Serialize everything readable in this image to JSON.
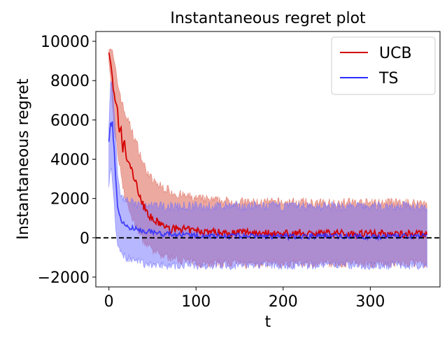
{
  "chart_data": {
    "type": "line",
    "title": "Instantaneous regret plot",
    "xlabel": "t",
    "ylabel": "Instantaneous regret",
    "xlim": [
      -15,
      380
    ],
    "ylim": [
      -2500,
      10500
    ],
    "x_ticks": [
      0,
      100,
      200,
      300
    ],
    "x_tick_labels": [
      "0",
      "100",
      "200",
      "300"
    ],
    "y_ticks": [
      -2000,
      0,
      2000,
      4000,
      6000,
      8000,
      10000
    ],
    "y_tick_labels": [
      "−2000",
      "0",
      "2000",
      "4000",
      "6000",
      "8000",
      "10000"
    ],
    "reference_line": {
      "y": 0,
      "style": "dashed",
      "color": "#000000"
    },
    "legend_position": "top-right",
    "grid": false,
    "series": [
      {
        "name": "UCB",
        "color": "#d40000",
        "fill_color": "#e07060",
        "x": [
          0,
          2,
          4,
          6,
          8,
          10,
          12,
          14,
          16,
          18,
          20,
          25,
          30,
          35,
          40,
          50,
          60,
          70,
          80,
          90,
          100,
          120,
          140,
          160,
          180,
          200,
          220,
          240,
          260,
          280,
          300,
          320,
          340,
          365
        ],
        "mean": [
          9500,
          8800,
          8200,
          7200,
          6800,
          6400,
          5200,
          5600,
          4400,
          5000,
          4000,
          3600,
          2900,
          2200,
          1600,
          900,
          700,
          400,
          500,
          400,
          350,
          300,
          250,
          300,
          250,
          200,
          250,
          200,
          250,
          200,
          250,
          200,
          200,
          200
        ],
        "upper": [
          9800,
          9700,
          9400,
          8900,
          8400,
          7900,
          7500,
          7100,
          6700,
          6400,
          6200,
          5600,
          5000,
          4400,
          3700,
          2900,
          2600,
          2400,
          2200,
          2100,
          2000,
          1900,
          1850,
          1800,
          1800,
          1800,
          1800,
          1750,
          1800,
          1800,
          1750,
          1800,
          1750,
          1800
        ],
        "lower": [
          8800,
          8000,
          6800,
          5600,
          5000,
          4400,
          3800,
          3300,
          2700,
          2200,
          1800,
          1200,
          700,
          200,
          -200,
          -700,
          -900,
          -1000,
          -1100,
          -1200,
          -1300,
          -1300,
          -1300,
          -1350,
          -1300,
          -1350,
          -1300,
          -1300,
          -1300,
          -1300,
          -1300,
          -1300,
          -1300,
          -1300
        ]
      },
      {
        "name": "TS",
        "color": "#2b2bff",
        "fill_color": "#7070ff",
        "x": [
          0,
          2,
          4,
          6,
          8,
          10,
          12,
          15,
          20,
          25,
          30,
          35,
          40,
          50,
          60,
          80,
          100,
          150,
          200,
          250,
          300,
          365
        ],
        "mean": [
          4800,
          5800,
          5800,
          4500,
          2800,
          1700,
          1100,
          800,
          600,
          500,
          450,
          400,
          350,
          300,
          200,
          150,
          100,
          100,
          50,
          100,
          50,
          100
        ],
        "upper": [
          5800,
          7800,
          7800,
          6500,
          4800,
          3300,
          2500,
          2100,
          1900,
          1800,
          1700,
          1700,
          1600,
          1600,
          1600,
          1600,
          1600,
          1600,
          1600,
          1600,
          1600,
          1600
        ],
        "lower": [
          2400,
          3600,
          3000,
          1800,
          400,
          -300,
          -500,
          -800,
          -1000,
          -1100,
          -1200,
          -1250,
          -1300,
          -1350,
          -1400,
          -1400,
          -1400,
          -1400,
          -1400,
          -1400,
          -1400,
          -1400
        ]
      }
    ]
  }
}
